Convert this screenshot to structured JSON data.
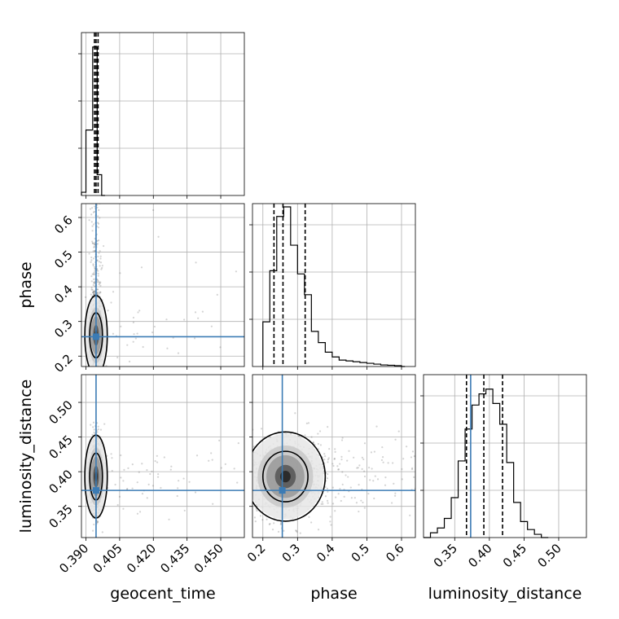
{
  "chart_data": {
    "type": "corner",
    "parameters": [
      "geocent_time",
      "phase",
      "luminosity_distance"
    ],
    "axis_labels": {
      "x": [
        "geocent_time",
        "phase",
        "luminosity_distance"
      ],
      "y": [
        "",
        "phase",
        "luminosity_distance"
      ]
    },
    "ranges": {
      "geocent_time": [
        0.388,
        0.4605
      ],
      "phase": [
        0.17,
        0.64
      ],
      "luminosity_distance": [
        0.305,
        0.54
      ]
    },
    "ticks": {
      "geocent_time": [
        "0.390",
        "0.405",
        "0.420",
        "0.435",
        "0.450"
      ],
      "phase": [
        "0.2",
        "0.3",
        "0.4",
        "0.5",
        "0.6"
      ],
      "luminosity_distance": [
        "0.35",
        "0.40",
        "0.45",
        "0.50"
      ]
    },
    "truths": {
      "geocent_time": 0.3945,
      "phase": 0.256,
      "luminosity_distance": 0.373
    },
    "quantiles": {
      "geocent_time": [
        0.3938,
        0.3945,
        0.3954
      ],
      "phase": [
        0.232,
        0.258,
        0.322
      ],
      "luminosity_distance": [
        0.367,
        0.392,
        0.419
      ]
    },
    "histograms": {
      "geocent_time": {
        "edges": [
          0.388,
          0.389,
          0.39,
          0.391,
          0.392,
          0.393,
          0.394,
          0.395,
          0.396,
          0.397,
          0.398,
          0.3985
        ],
        "counts": [
          0.02,
          0.02,
          0.41,
          0.41,
          0.41,
          0.93,
          0.93,
          0.13,
          0.13,
          0.0,
          0.0
        ]
      },
      "phase": {
        "edges": [
          0.2,
          0.22,
          0.24,
          0.26,
          0.28,
          0.3,
          0.32,
          0.34,
          0.36,
          0.38,
          0.4,
          0.42,
          0.44,
          0.46,
          0.48,
          0.5,
          0.52,
          0.54,
          0.56,
          0.58,
          0.6,
          0.61
        ],
        "counts": [
          0.28,
          0.6,
          0.94,
          1.0,
          0.76,
          0.58,
          0.45,
          0.22,
          0.15,
          0.09,
          0.06,
          0.04,
          0.035,
          0.03,
          0.025,
          0.02,
          0.015,
          0.01,
          0.008,
          0.005,
          0.0
        ]
      },
      "luminosity_distance": {
        "edges": [
          0.305,
          0.315,
          0.325,
          0.335,
          0.345,
          0.355,
          0.365,
          0.375,
          0.385,
          0.395,
          0.405,
          0.415,
          0.425,
          0.435,
          0.445,
          0.455,
          0.465,
          0.475,
          0.485
        ],
        "counts": [
          0.0,
          0.03,
          0.06,
          0.12,
          0.25,
          0.48,
          0.68,
          0.83,
          0.9,
          0.93,
          0.84,
          0.71,
          0.47,
          0.22,
          0.1,
          0.05,
          0.02,
          0.0
        ]
      }
    },
    "density_2d": [
      {
        "x": "geocent_time",
        "y": "phase",
        "center": [
          0.3945,
          0.26
        ],
        "spread": [
          0.0012,
          0.05
        ],
        "tail": [
          0.06,
          0.25
        ]
      },
      {
        "x": "geocent_time",
        "y": "luminosity_distance",
        "center": [
          0.3945,
          0.393
        ],
        "spread": [
          0.0012,
          0.026
        ],
        "tail": [
          0.06,
          0.0
        ]
      },
      {
        "x": "phase",
        "y": "luminosity_distance",
        "center": [
          0.265,
          0.393
        ],
        "spread": [
          0.05,
          0.028
        ],
        "tail": [
          0.15,
          0.0
        ]
      }
    ],
    "grid": true,
    "truth_color": "#3b7bb4"
  }
}
